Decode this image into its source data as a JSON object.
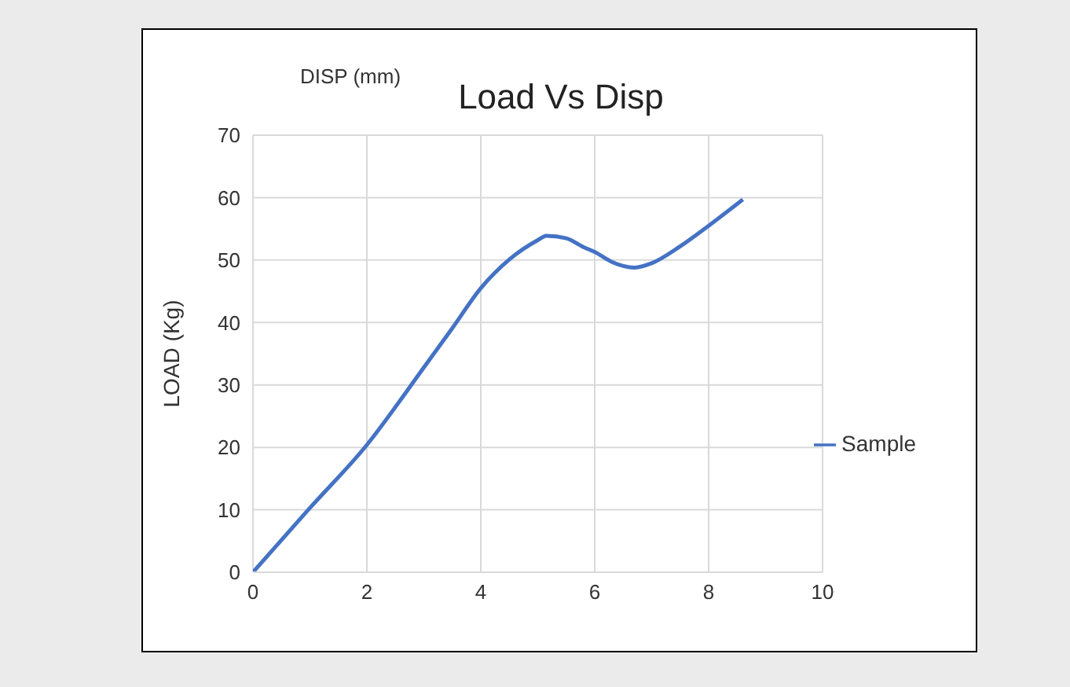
{
  "chart_data": {
    "type": "line",
    "title": "Load Vs Disp",
    "xlabel": "DISP (mm)",
    "ylabel": "LOAD (Kg)",
    "series": [
      {
        "name": "Sample",
        "color": "#4472c4",
        "x": [
          0,
          1,
          2,
          3,
          3.5,
          4,
          4.5,
          5,
          5.15,
          5.5,
          5.8,
          6,
          6.3,
          6.7,
          7,
          7.5,
          8,
          8.6
        ],
        "values": [
          0,
          10.3,
          20.4,
          32.8,
          39.1,
          45.5,
          50.1,
          53.2,
          53.9,
          53.5,
          52.1,
          51.3,
          49.7,
          48.8,
          49.5,
          52.2,
          55.5,
          59.7
        ]
      }
    ],
    "xlim": [
      0,
      10
    ],
    "xticks": [
      0,
      2,
      4,
      6,
      8,
      10
    ],
    "ylim": [
      0,
      70
    ],
    "yticks": [
      0,
      10,
      20,
      30,
      40,
      50,
      60,
      70
    ],
    "grid": true,
    "legend": "right",
    "marker": "none",
    "line_style": "solid"
  }
}
